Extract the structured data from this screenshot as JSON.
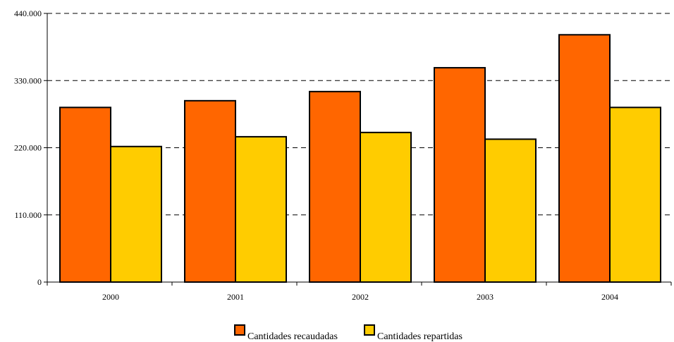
{
  "chart_data": {
    "type": "bar",
    "categories": [
      "2000",
      "2001",
      "2002",
      "2003",
      "2004"
    ],
    "series": [
      {
        "name": "Cantidades recaudadas",
        "color": "#ff6600",
        "values": [
          286000,
          297000,
          312000,
          351000,
          405000
        ]
      },
      {
        "name": "Cantidades repartidas",
        "color": "#ffcc00",
        "values": [
          222000,
          238000,
          245000,
          234000,
          286000
        ]
      }
    ],
    "ylim": [
      0,
      440000
    ],
    "yticks": [
      0,
      110000,
      220000,
      330000,
      440000
    ],
    "ytick_labels": [
      "0",
      "110.000",
      "220.000",
      "330.000",
      "440.000"
    ],
    "grid": "horizontal dashed",
    "legend_position": "bottom-center",
    "title": "",
    "xlabel": "",
    "ylabel": ""
  }
}
